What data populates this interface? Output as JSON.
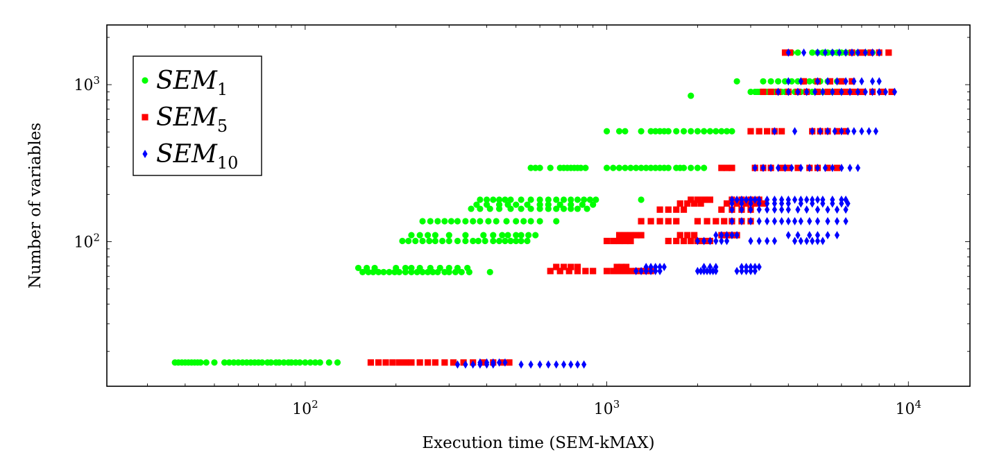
{
  "chart_data": {
    "type": "scatter",
    "xlabel": "Execution time (SEM-kMAX)",
    "ylabel": "Number of variables",
    "xscale": "log",
    "yscale": "log",
    "xlim": [
      22,
      16000
    ],
    "ylim": [
      12,
      2400
    ],
    "xticks": [
      {
        "value": 100,
        "base": "10",
        "exp": "2"
      },
      {
        "value": 1000,
        "base": "10",
        "exp": "3"
      },
      {
        "value": 10000,
        "base": "10",
        "exp": "4"
      }
    ],
    "yticks": [
      {
        "value": 100,
        "base": "10",
        "exp": "2"
      },
      {
        "value": 1000,
        "base": "10",
        "exp": "3"
      }
    ],
    "grid": false,
    "legend_position": "top-left",
    "series": [
      {
        "name": "SEM",
        "subscript": "1",
        "color": "#00ff00",
        "marker": "circle",
        "groups": [
          {
            "y": 17,
            "x": [
              37,
              38,
              39,
              40,
              41,
              42,
              43,
              44,
              45,
              47,
              50,
              54,
              56,
              58,
              60,
              62,
              64,
              66,
              68,
              70,
              72,
              75,
              77,
              80,
              82,
              85,
              88,
              90,
              93,
              96,
              100,
              104,
              108,
              112,
              120,
              128
            ]
          },
          {
            "y": 64,
            "x": [
              155,
              162,
              168,
              175,
              182,
              190,
              198,
              205,
              215,
              225,
              235,
              245,
              255,
              265,
              275,
              290,
              300,
              315,
              330,
              350,
              410
            ]
          },
          {
            "y": 68,
            "x": [
              150,
              160,
              170,
              200,
              215,
              225,
              240,
              260,
              280,
              300,
              320,
              345
            ]
          },
          {
            "y": 101,
            "x": [
              210,
              220,
              232,
              245,
              258,
              270,
              285,
              300,
              320,
              340,
              360,
              375,
              395,
              420,
              440,
              460,
              480,
              500,
              520,
              545
            ]
          },
          {
            "y": 110,
            "x": [
              225,
              240,
              255,
              270,
              300,
              340,
              390,
              420,
              450,
              470,
              500,
              520,
              550,
              580
            ]
          },
          {
            "y": 135,
            "x": [
              245,
              260,
              275,
              290,
              305,
              320,
              340,
              360,
              380,
              405,
              430,
              465,
              500,
              530,
              560,
              600,
              680
            ]
          },
          {
            "y": 162,
            "x": [
              355,
              380,
              410,
              440,
              480,
              520,
              560,
              600,
              640,
              680,
              720,
              760,
              800,
              860
            ]
          },
          {
            "y": 172,
            "x": [
              370,
              400,
              440,
              470,
              500,
              545,
              600,
              640,
              700,
              760,
              830,
              900
            ]
          },
          {
            "y": 185,
            "x": [
              380,
              400,
              420,
              440,
              460,
              480,
              520,
              560,
              600,
              640,
              680,
              720,
              760,
              800,
              840,
              880,
              920,
              1300
            ]
          },
          {
            "y": 295,
            "x": [
              560,
              580,
              600,
              650,
              700,
              720,
              740,
              760,
              780,
              800,
              820,
              850,
              1000,
              1050,
              1100,
              1150,
              1200,
              1250,
              1300,
              1350,
              1400,
              1450,
              1500,
              1550,
              1600,
              1700,
              1750,
              1800,
              1900,
              2000,
              2100
            ]
          },
          {
            "y": 505,
            "x": [
              1000,
              1100,
              1150,
              1300,
              1400,
              1450,
              1500,
              1550,
              1600,
              1700,
              1800,
              1900,
              2000,
              2100,
              2200,
              2300,
              2400,
              2500,
              2600
            ]
          },
          {
            "y": 850,
            "x": [
              1900
            ]
          },
          {
            "y": 900,
            "x": [
              3000,
              3100,
              3150,
              3200,
              3250,
              3300,
              3400,
              3500,
              3600,
              3700,
              3800,
              3900,
              4000,
              4200,
              4400,
              4600,
              4800,
              5000,
              5200,
              5400,
              5600,
              6000
            ]
          },
          {
            "y": 1050,
            "x": [
              2700,
              3300,
              3500,
              3700,
              3900,
              4100,
              4300,
              4500,
              4700,
              4900,
              5100,
              5400,
              5800
            ]
          },
          {
            "y": 1600,
            "x": [
              4100,
              4300,
              4800,
              5000,
              5200,
              5400,
              5600,
              5800,
              6000,
              6200,
              6400,
              6800,
              7200,
              7600
            ]
          }
        ]
      },
      {
        "name": "SEM",
        "subscript": "5",
        "color": "#ff0000",
        "marker": "square",
        "groups": [
          {
            "y": 17,
            "x": [
              165,
              175,
              185,
              195,
              205,
              215,
              225,
              240,
              255,
              270,
              290,
              310,
              335,
              360,
              390,
              420,
              450,
              475
            ]
          },
          {
            "y": 65,
            "x": [
              650,
              700,
              750,
              800,
              850,
              900,
              1000,
              1050,
              1100,
              1150,
              1200,
              1250,
              1300,
              1350,
              1400
            ]
          },
          {
            "y": 69,
            "x": [
              680,
              720,
              760,
              800,
              1080,
              1120,
              1160
            ]
          },
          {
            "y": 101,
            "x": [
              1000,
              1050,
              1100,
              1150,
              1200,
              1600,
              1700,
              1800,
              1900,
              2000,
              2100,
              2200
            ]
          },
          {
            "y": 110,
            "x": [
              1100,
              1150,
              1200,
              1250,
              1300,
              1750,
              1850,
              1950,
              2400,
              2500,
              2600,
              2700
            ]
          },
          {
            "y": 135,
            "x": [
              1300,
              1400,
              1500,
              1600,
              1700,
              2000,
              2150,
              2300,
              2450,
              2600,
              2800,
              3000
            ]
          },
          {
            "y": 160,
            "x": [
              1500,
              1600,
              1700,
              1800,
              2400,
              2600,
              2800,
              3000
            ]
          },
          {
            "y": 175,
            "x": [
              1750,
              1850,
              1950,
              2050,
              2500,
              2700,
              2900,
              3100,
              3300
            ]
          },
          {
            "y": 185,
            "x": [
              1900,
              2000,
              2100,
              2200,
              2600,
              2800,
              3000,
              3200
            ]
          },
          {
            "y": 295,
            "x": [
              2400,
              2500,
              2600,
              3100,
              3300,
              3500,
              3800,
              4000,
              4300,
              4700,
              5000,
              5400,
              5800
            ]
          },
          {
            "y": 505,
            "x": [
              3000,
              3200,
              3400,
              3600,
              3800,
              4800,
              5100,
              5400,
              5800,
              6200
            ]
          },
          {
            "y": 900,
            "x": [
              3300,
              3500,
              3700,
              4000,
              4300,
              4600,
              5000,
              5400,
              5800,
              6200,
              6600,
              7000,
              7600,
              8200,
              8800
            ]
          },
          {
            "y": 1050,
            "x": [
              4500,
              5000,
              5500,
              6000,
              6500
            ]
          },
          {
            "y": 1600,
            "x": [
              3900,
              4050,
              6500,
              7000,
              7500,
              8000,
              8600
            ]
          }
        ]
      },
      {
        "name": "SEM",
        "subscript": "10",
        "color": "#0000ff",
        "marker": "diamond",
        "groups": [
          {
            "y": 16.5,
            "x": [
              320,
              340,
              360,
              380,
              400,
              420,
              520,
              560,
              600,
              640,
              680,
              720,
              760,
              800,
              840
            ]
          },
          {
            "y": 17,
            "x": [
              380,
              400,
              420,
              440,
              460
            ]
          },
          {
            "y": 65,
            "x": [
              1250,
              1300,
              1350,
              1400,
              1450,
              1500,
              2000,
              2050,
              2100,
              2150,
              2200,
              2250,
              2300,
              2700,
              2800,
              2900,
              3000,
              3100
            ]
          },
          {
            "y": 69,
            "x": [
              1350,
              1400,
              1450,
              1500,
              1550,
              2100,
              2200,
              2300,
              2800,
              2900,
              3000,
              3100,
              3200
            ]
          },
          {
            "y": 101,
            "x": [
              2000,
              2100,
              2200,
              2300,
              2400,
              2500,
              3000,
              3200,
              3400,
              3600,
              4200,
              4400,
              4600,
              4800,
              5000,
              5200
            ]
          },
          {
            "y": 110,
            "x": [
              2300,
              2400,
              2500,
              2600,
              2700,
              4000,
              4300,
              4700,
              5000,
              5400,
              5800
            ]
          },
          {
            "y": 135,
            "x": [
              2600,
              2800,
              3000,
              3200,
              3400,
              3600,
              3800,
              4000,
              4200,
              4400,
              4700,
              5000,
              5400,
              5800,
              6200
            ]
          },
          {
            "y": 160,
            "x": [
              2600,
              2800,
              3000,
              3200,
              3400,
              3600,
              3800,
              4000,
              4300,
              4600,
              5000,
              5400,
              5800,
              6200
            ]
          },
          {
            "y": 175,
            "x": [
              2600,
              2800,
              3000,
              3200,
              3400,
              3600,
              3800,
              4000,
              4400,
              4800,
              5200,
              5600,
              6000,
              6300
            ]
          },
          {
            "y": 185,
            "x": [
              2600,
              2700,
              2800,
              2900,
              3000,
              3100,
              3200,
              3400,
              3600,
              3800,
              4000,
              4200,
              4400,
              4600,
              4800,
              5000,
              5200,
              5600,
              6000,
              6200
            ]
          },
          {
            "y": 295,
            "x": [
              3100,
              3300,
              3500,
              3700,
              3900,
              4100,
              4400,
              4700,
              5000,
              5300,
              5600,
              6000,
              6400,
              6800
            ]
          },
          {
            "y": 505,
            "x": [
              3600,
              4200,
              4800,
              5100,
              5400,
              5700,
              6000,
              6300,
              6600,
              7000,
              7400,
              7800
            ]
          },
          {
            "y": 900,
            "x": [
              3700,
              4000,
              4300,
              4600,
              4900,
              5200,
              5600,
              6000,
              6400,
              6800,
              7200,
              7600,
              8000,
              8400,
              9000
            ]
          },
          {
            "y": 1050,
            "x": [
              4000,
              4400,
              5000,
              5400,
              5800,
              6200,
              6600,
              7000,
              7600,
              8000
            ]
          },
          {
            "y": 1600,
            "x": [
              4000,
              4500,
              5000,
              5300,
              5600,
              5900,
              6200,
              6500,
              6800,
              7200,
              7600,
              8000
            ]
          }
        ]
      }
    ]
  }
}
